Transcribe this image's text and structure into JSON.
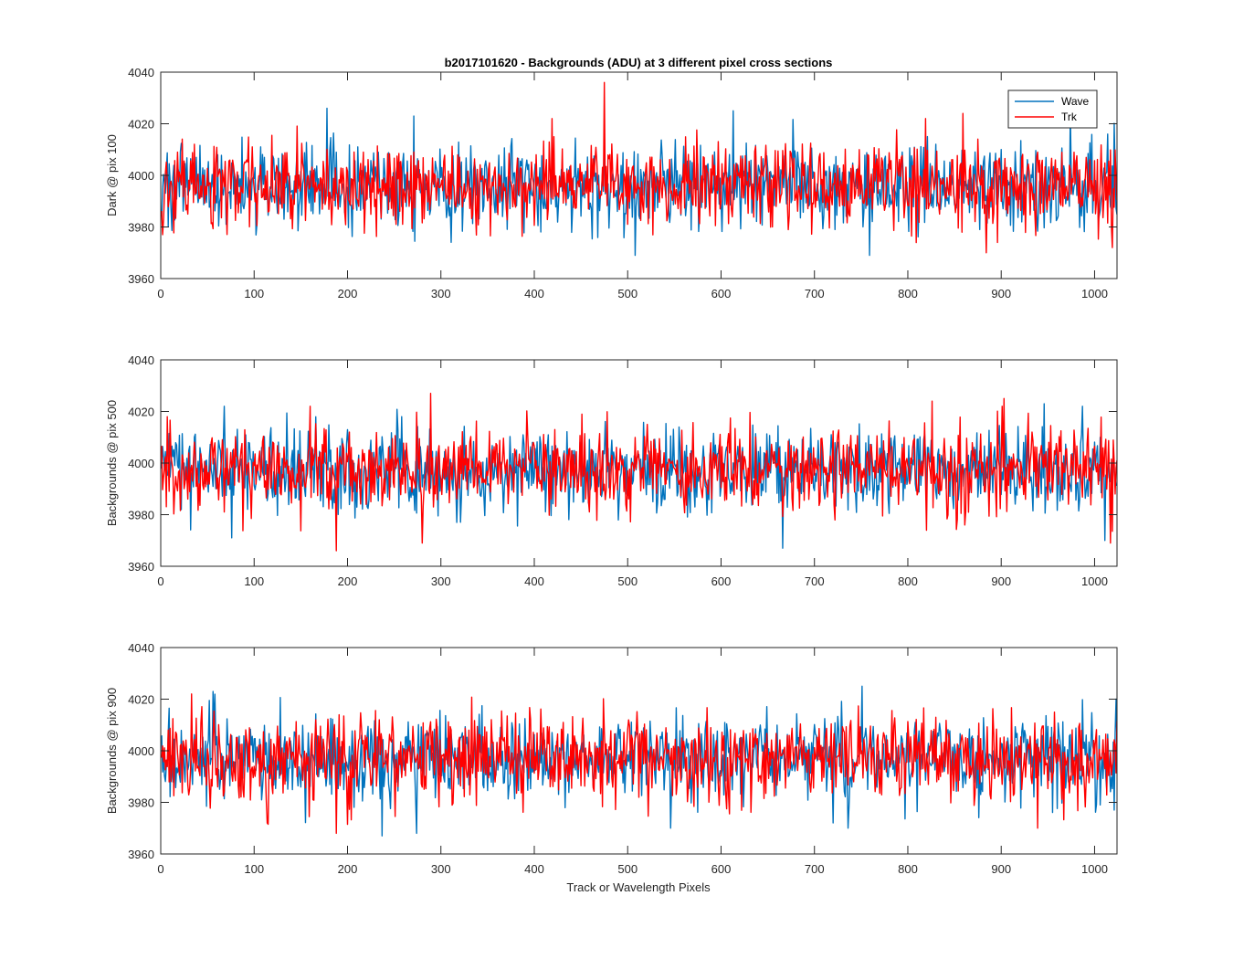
{
  "figure_title": "b2017101620 - Backgrounds (ADU) at 3 different pixel cross sections",
  "xlabel": "Track or Wavelength Pixels",
  "legend": [
    {
      "label": "Wave",
      "color": "#0072BD"
    },
    {
      "label": "Trk",
      "color": "#FF0000"
    }
  ],
  "chart_data": [
    {
      "type": "line",
      "title": "b2017101620 - Backgrounds (ADU) at 3 different pixel cross sections",
      "ylabel": "Dark @ pix 100",
      "xlabel": "",
      "xlim": [
        0,
        1024
      ],
      "ylim": [
        3960,
        4040
      ],
      "xticks": [
        0,
        100,
        200,
        300,
        400,
        500,
        600,
        700,
        800,
        900,
        1000
      ],
      "yticks": [
        3960,
        3980,
        4000,
        4020,
        4040
      ],
      "legend_position": "top-right",
      "series": [
        {
          "name": "Wave",
          "color": "#0072BD",
          "mean": 3996,
          "std": 8,
          "n": 1024,
          "seed": 101,
          "spikes": [
            [
              177,
              4026
            ],
            [
              270,
              4023
            ],
            [
              507,
              3969
            ],
            [
              758,
              3969
            ],
            [
              612,
              4025
            ],
            [
              973,
              4024
            ],
            [
              1013,
              4016
            ]
          ]
        },
        {
          "name": "Trk",
          "color": "#FF0000",
          "mean": 3996,
          "std": 8,
          "n": 1024,
          "seed": 202,
          "spikes": [
            [
              474,
              4036
            ],
            [
              418,
              4022
            ],
            [
              858,
              4024
            ],
            [
              895,
              3974
            ],
            [
              1018,
              3972
            ],
            [
              1,
              3977
            ]
          ]
        }
      ]
    },
    {
      "type": "line",
      "ylabel": "Backgrounds @ pix 500",
      "xlabel": "",
      "xlim": [
        0,
        1024
      ],
      "ylim": [
        3960,
        4040
      ],
      "xticks": [
        0,
        100,
        200,
        300,
        400,
        500,
        600,
        700,
        800,
        900,
        1000
      ],
      "yticks": [
        3960,
        3980,
        4000,
        4020,
        4040
      ],
      "series": [
        {
          "name": "Wave",
          "color": "#0072BD",
          "mean": 3997,
          "std": 8,
          "n": 1024,
          "seed": 303,
          "spikes": [
            [
              67,
              4022
            ],
            [
              75,
              3971
            ],
            [
              665,
              3967
            ],
            [
              945,
              4023
            ],
            [
              986,
              4022
            ],
            [
              1010,
              3970
            ]
          ]
        },
        {
          "name": "Trk",
          "color": "#FF0000",
          "mean": 3997,
          "std": 8,
          "n": 1024,
          "seed": 404,
          "spikes": [
            [
              288,
              4027
            ],
            [
              187,
              3966
            ],
            [
              279,
              3969
            ],
            [
              825,
              4024
            ],
            [
              902,
              4025
            ],
            [
              1016,
              3969
            ],
            [
              6,
              4018
            ]
          ]
        }
      ]
    },
    {
      "type": "line",
      "ylabel": "Backgrounds @ pix 900",
      "xlabel": "Track or Wavelength Pixels",
      "xlim": [
        0,
        1024
      ],
      "ylim": [
        3960,
        4040
      ],
      "xticks": [
        0,
        100,
        200,
        300,
        400,
        500,
        600,
        700,
        800,
        900,
        1000
      ],
      "yticks": [
        3960,
        3980,
        4000,
        4020,
        4040
      ],
      "series": [
        {
          "name": "Wave",
          "color": "#0072BD",
          "mean": 3997,
          "std": 8,
          "n": 1024,
          "seed": 505,
          "spikes": [
            [
              55,
              4023
            ],
            [
              236,
              3967
            ],
            [
              273,
              3968
            ],
            [
              750,
              4025
            ],
            [
              1022,
              4020
            ],
            [
              1020,
              3977
            ]
          ]
        },
        {
          "name": "Trk",
          "color": "#FF0000",
          "mean": 3997,
          "std": 8,
          "n": 1024,
          "seed": 606,
          "spikes": [
            [
              32,
              4022
            ],
            [
              187,
              3968
            ],
            [
              938,
              3970
            ],
            [
              113,
              3972
            ]
          ]
        }
      ]
    }
  ]
}
